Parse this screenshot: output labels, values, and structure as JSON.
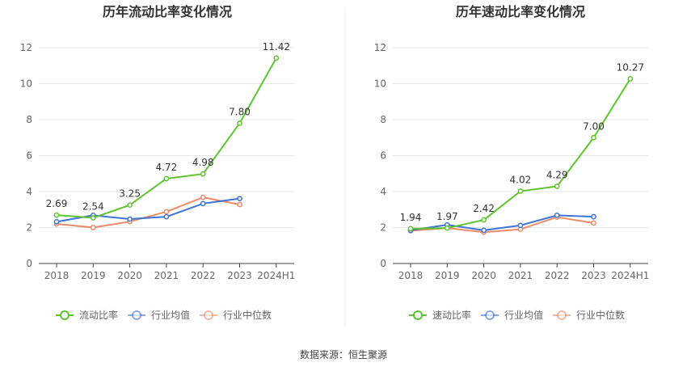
{
  "chart_data": [
    {
      "type": "line",
      "title": "历年流动比率变化情况",
      "categories": [
        "2018",
        "2019",
        "2020",
        "2021",
        "2022",
        "2023",
        "2024H1"
      ],
      "y_ticks": [
        "0",
        "2",
        "4",
        "6",
        "8",
        "10",
        "12"
      ],
      "ylim": [
        0,
        12
      ],
      "grid": true,
      "legend_position": "bottom",
      "series": [
        {
          "name": "流动比率",
          "color": "#5cc52f",
          "values": [
            2.69,
            2.54,
            3.25,
            4.72,
            4.98,
            7.8,
            11.42
          ],
          "labels": [
            "2.69",
            "2.54",
            "3.25",
            "4.72",
            "4.98",
            "7.80",
            "11.42"
          ]
        },
        {
          "name": "行业均值",
          "color": "#3d74d9",
          "values": [
            2.32,
            2.68,
            2.47,
            2.6,
            3.33,
            3.61,
            null
          ]
        },
        {
          "name": "行业中位数",
          "color": "#ef8a67",
          "values": [
            2.2,
            2.0,
            2.33,
            2.88,
            3.68,
            3.28,
            null
          ]
        }
      ]
    },
    {
      "type": "line",
      "title": "历年速动比率变化情况",
      "categories": [
        "2018",
        "2019",
        "2020",
        "2021",
        "2022",
        "2023",
        "2024H1"
      ],
      "y_ticks": [
        "0",
        "2",
        "4",
        "6",
        "8",
        "10",
        "12"
      ],
      "ylim": [
        0,
        12
      ],
      "grid": true,
      "legend_position": "bottom",
      "series": [
        {
          "name": "速动比率",
          "color": "#5cc52f",
          "values": [
            1.94,
            1.97,
            2.42,
            4.02,
            4.29,
            7.0,
            10.27
          ],
          "labels": [
            "1.94",
            "1.97",
            "2.42",
            "4.02",
            "4.29",
            "7.00",
            "10.27"
          ]
        },
        {
          "name": "行业均值",
          "color": "#3d74d9",
          "values": [
            1.85,
            2.15,
            1.85,
            2.12,
            2.68,
            2.6,
            null
          ]
        },
        {
          "name": "行业中位数",
          "color": "#ef8a67",
          "values": [
            1.82,
            1.97,
            1.74,
            1.9,
            2.58,
            2.25,
            null
          ]
        }
      ]
    }
  ],
  "footer": {
    "source": "数据来源：恒生聚源"
  }
}
